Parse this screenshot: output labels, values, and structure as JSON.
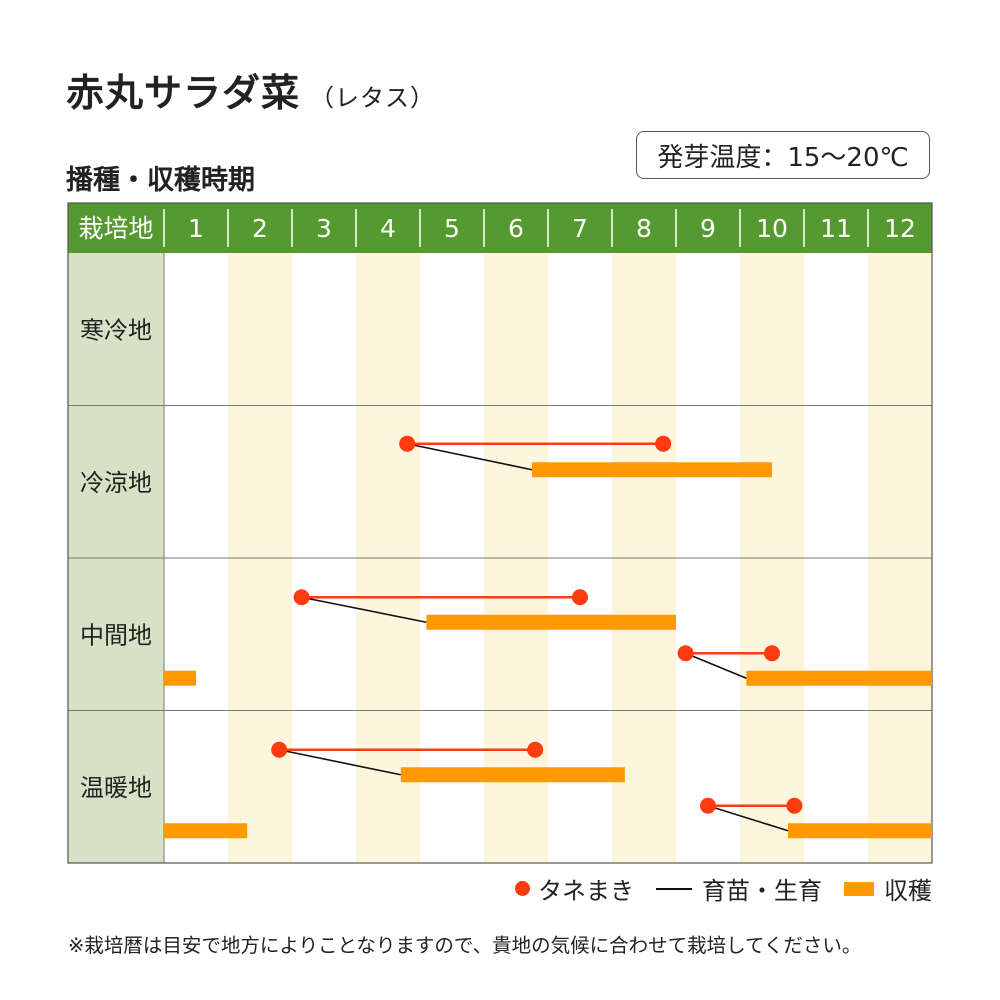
{
  "title": "赤丸サラダ菜",
  "title_sub": "（レタス）",
  "subtitle": "播種・収穫時期",
  "germination": "発芽温度：15～20℃",
  "footnote": "※栽培暦は目安で地方によりことなりますので、貴地の気候に合わせて栽培してください。",
  "colors": {
    "header_green": "#559a31",
    "region_bg": "#d8e0c5",
    "alt_month": "#fdf5dc",
    "sowing": "#ff3b0f",
    "harvest": "#ff9900",
    "growth": "#111111"
  },
  "chart_data": {
    "type": "gantt",
    "header_label": "栽培地",
    "months": [
      "1",
      "2",
      "3",
      "4",
      "5",
      "6",
      "7",
      "8",
      "9",
      "10",
      "11",
      "12"
    ],
    "legend": {
      "sowing": "タネまき",
      "growth": "育苗・生育",
      "harvest": "収穫"
    },
    "regions": [
      {
        "name": "寒冷地",
        "schedules": []
      },
      {
        "name": "冷涼地",
        "schedules": [
          {
            "sow": [
              4.8,
              8.8
            ],
            "harvest": [
              6.75,
              10.5
            ]
          }
        ]
      },
      {
        "name": "中間地",
        "schedules": [
          {
            "sow": [
              3.15,
              7.5
            ],
            "harvest": [
              5.1,
              9.0
            ]
          },
          {
            "sow": [
              9.15,
              10.5
            ],
            "harvest": [
              10.1,
              13.0
            ]
          },
          {
            "harvest": [
              1.0,
              1.5
            ]
          }
        ]
      },
      {
        "name": "温暖地",
        "schedules": [
          {
            "sow": [
              2.8,
              6.8
            ],
            "harvest": [
              4.7,
              8.2
            ]
          },
          {
            "sow": [
              9.5,
              10.85
            ],
            "harvest": [
              10.75,
              13.0
            ]
          },
          {
            "harvest": [
              1.0,
              2.3
            ]
          }
        ]
      }
    ]
  }
}
